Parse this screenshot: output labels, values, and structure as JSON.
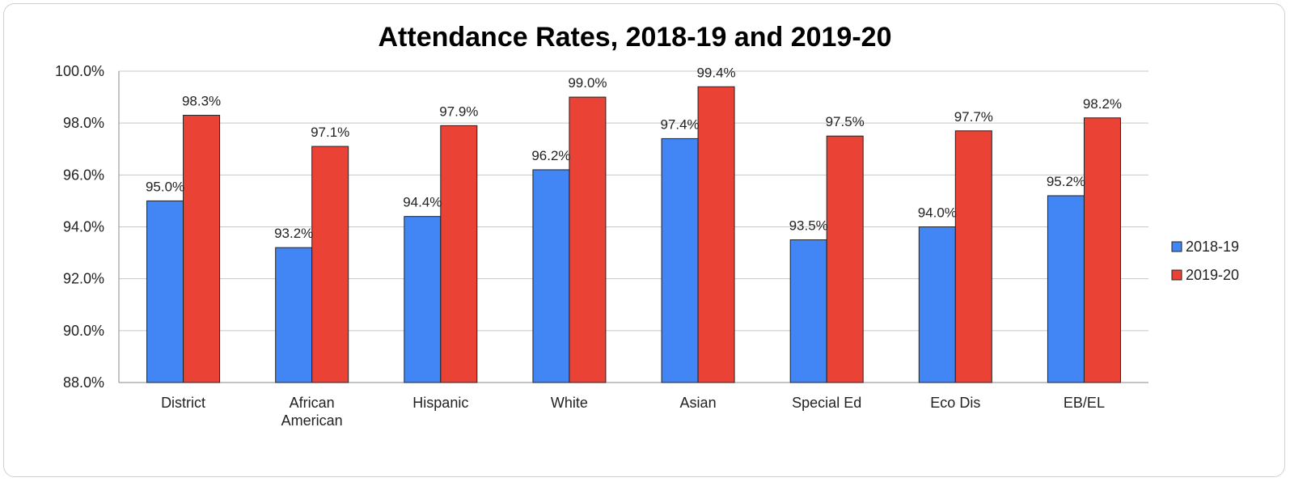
{
  "chart_data": {
    "type": "bar",
    "title": "Attendance Rates, 2018-19 and 2019-20",
    "xlabel": "",
    "ylabel": "",
    "categories": [
      [
        "District"
      ],
      [
        "African",
        "American"
      ],
      [
        "Hispanic"
      ],
      [
        "White"
      ],
      [
        "Asian"
      ],
      [
        "Special Ed"
      ],
      [
        "Eco Dis"
      ],
      [
        "EB/EL"
      ]
    ],
    "series": [
      {
        "name": "2018-19",
        "color": "#4285f4",
        "values": [
          95.0,
          93.2,
          94.4,
          96.2,
          97.4,
          93.5,
          94.0,
          95.2
        ],
        "labels": [
          "95.0%",
          "93.2%",
          "94.4%",
          "96.2%",
          "97.4%",
          "93.5%",
          "94.0%",
          "95.2%"
        ]
      },
      {
        "name": "2019-20",
        "color": "#ea4335",
        "values": [
          98.3,
          97.1,
          97.9,
          99.0,
          99.4,
          97.5,
          97.7,
          98.2
        ],
        "labels": [
          "98.3%",
          "97.1%",
          "97.9%",
          "99.0%",
          "99.4%",
          "97.5%",
          "97.7%",
          "98.2%"
        ]
      }
    ],
    "ylim": [
      88,
      100
    ],
    "yticks": [
      "88.0%",
      "90.0%",
      "92.0%",
      "94.0%",
      "96.0%",
      "98.0%",
      "100.0%"
    ],
    "grid": true,
    "legend_position": "right"
  }
}
